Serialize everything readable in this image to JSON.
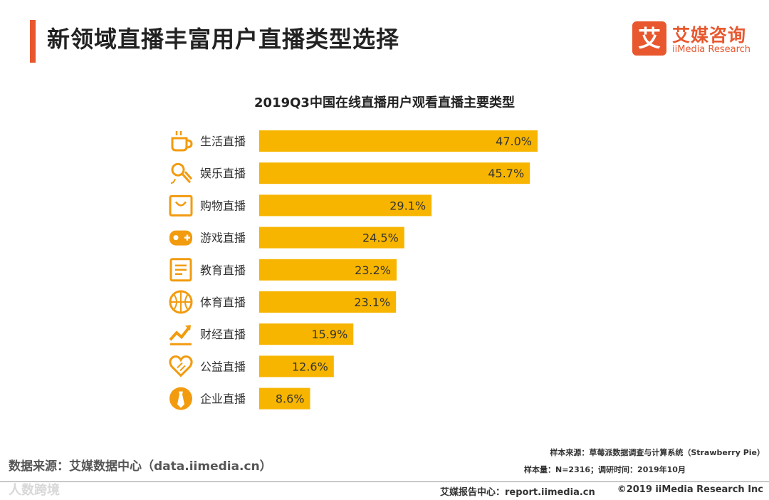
{
  "header": {
    "title": "新领域直播丰富用户直播类型选择",
    "brand_cn": "艾媒咨询",
    "brand_en": "iiMedia Research",
    "brand_logo_char": "艾",
    "accent_color": "#e8572e"
  },
  "chart_data": {
    "type": "bar",
    "orientation": "horizontal",
    "title": "2019Q3中国在线直播用户观看直播主要类型",
    "categories": [
      "生活直播",
      "娱乐直播",
      "购物直播",
      "游戏直播",
      "教育直播",
      "体育直播",
      "财经直播",
      "公益直播",
      "企业直播"
    ],
    "values": [
      47.0,
      45.7,
      29.1,
      24.5,
      23.2,
      23.1,
      15.9,
      12.6,
      8.6
    ],
    "labels": [
      "47.0%",
      "45.7%",
      "29.1%",
      "24.5%",
      "23.2%",
      "23.1%",
      "15.9%",
      "12.6%",
      "8.6%"
    ],
    "icons": [
      "coffee-cup-icon",
      "microphone-icon",
      "shopping-bag-icon",
      "gamepad-icon",
      "document-icon",
      "basketball-icon",
      "trend-chart-icon",
      "heart-hands-icon",
      "tie-icon"
    ],
    "unit": "%",
    "bar_color": "#f7b500",
    "icon_color": "#f29b0f",
    "xlim": [
      0,
      47.0
    ]
  },
  "footer": {
    "source_left": "数据来源：艾媒数据中心（data.iimedia.cn）",
    "sample_source": "样本来源：草莓派数据调查与计算系统（Strawberry Pie）",
    "sample_size": "样本量：N=2316；调研时间：2019年10月",
    "report": "艾媒报告中心：report.iimedia.cn",
    "copyright": "©2019  iiMedia Research  Inc",
    "watermark": "人数跨境"
  }
}
